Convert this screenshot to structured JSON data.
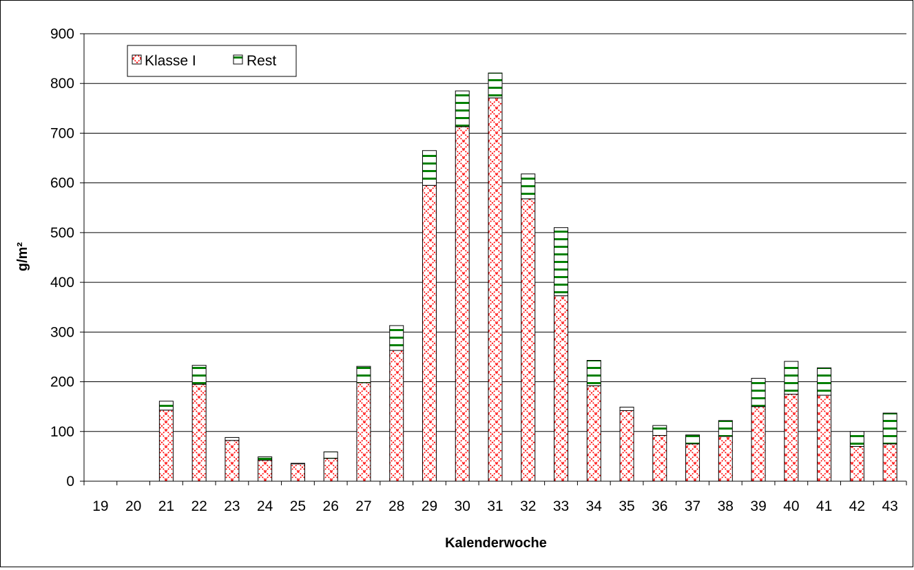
{
  "chart_data": {
    "type": "bar",
    "stacked": true,
    "categories": [
      "19",
      "20",
      "21",
      "22",
      "23",
      "24",
      "25",
      "26",
      "27",
      "28",
      "29",
      "30",
      "31",
      "32",
      "33",
      "34",
      "35",
      "36",
      "37",
      "38",
      "39",
      "40",
      "41",
      "42",
      "43"
    ],
    "series": [
      {
        "name": "Klasse I",
        "color": "#ff0000",
        "pattern": "cross-hatch-red",
        "values": [
          0,
          0,
          143,
          195,
          82,
          42,
          35,
          46,
          198,
          263,
          595,
          713,
          771,
          568,
          373,
          192,
          142,
          92,
          75,
          90,
          150,
          175,
          173,
          70,
          75
        ]
      },
      {
        "name": "Rest",
        "color": "#008000",
        "pattern": "horizontal-stripes-green",
        "values": [
          0,
          0,
          18,
          38,
          6,
          7,
          1,
          13,
          33,
          50,
          70,
          72,
          50,
          50,
          137,
          51,
          7,
          20,
          18,
          32,
          57,
          66,
          55,
          30,
          62
        ]
      }
    ],
    "title": "",
    "xlabel": "Kalenderwoche",
    "ylabel": "g/m²",
    "ylim": [
      0,
      900
    ],
    "yticks": [
      "0",
      "100",
      "200",
      "300",
      "400",
      "500",
      "600",
      "700",
      "800",
      "900"
    ],
    "grid": true,
    "legend_position": "top-left"
  }
}
